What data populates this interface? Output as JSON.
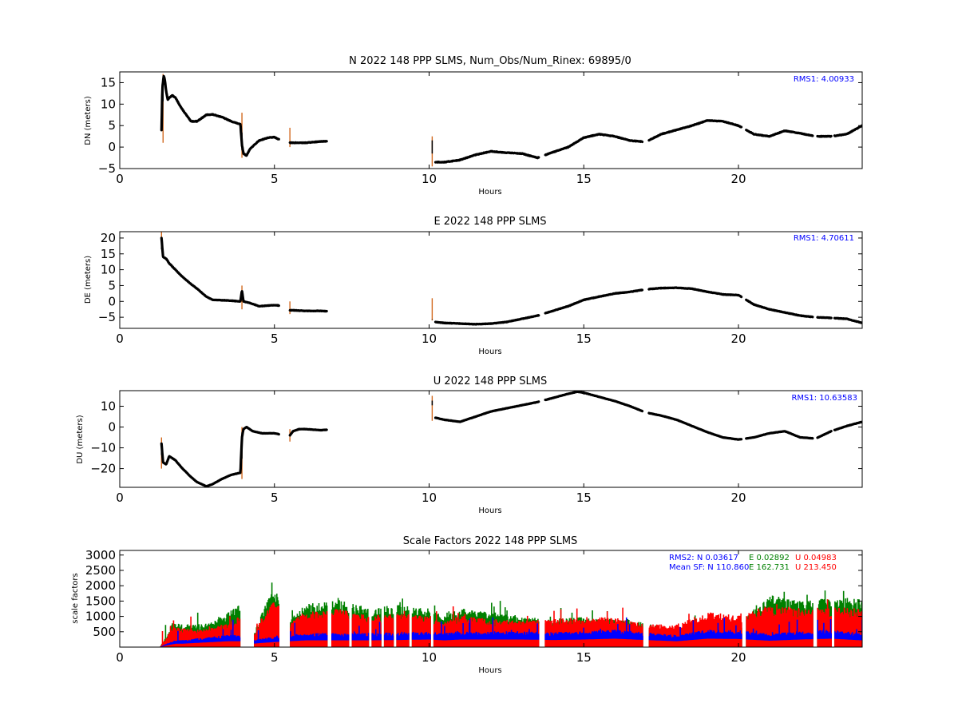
{
  "colors": {
    "trace": "#000000",
    "trace_error": "#d2691e",
    "n": "#0000ff",
    "e": "#008000",
    "u": "#ff0000",
    "rms_text": "#0000ff"
  },
  "chart_data": [
    {
      "type": "scatter",
      "title": "N 2022 148 PPP  SLMS, Num_Obs/Num_Rinex: 69895/0",
      "xlabel": "Hours",
      "ylabel": "DN (meters)",
      "xlim": [
        0,
        24
      ],
      "ylim": [
        -5,
        17.5
      ],
      "xticks": [
        0,
        5,
        10,
        15,
        20
      ],
      "xtick_labels": [
        "0",
        "5",
        "10",
        "15",
        "20"
      ],
      "yticks": [
        -5,
        0,
        5,
        10,
        15
      ],
      "ytick_labels": [
        "−5",
        "0",
        "5",
        "10",
        "15"
      ],
      "annotation": "RMS1:  4.00933",
      "gaps": [
        [
          5.15,
          5.5
        ],
        [
          6.7,
          10.2
        ],
        [
          13.55,
          13.75
        ],
        [
          16.9,
          17.1
        ],
        [
          20.1,
          20.25
        ],
        [
          22.4,
          22.55
        ],
        [
          23.0,
          23.1
        ]
      ],
      "error_spikes": [
        [
          1.4,
          1.0,
          17.0
        ],
        [
          3.95,
          -2.5,
          8.0
        ],
        [
          5.5,
          0.0,
          4.5
        ],
        [
          10.1,
          -4.5,
          2.5
        ]
      ],
      "series": [
        {
          "x": [
            1.35,
            1.38,
            1.42,
            1.45,
            1.5,
            1.55,
            1.6,
            1.7,
            1.8,
            2.0,
            2.3,
            2.5,
            2.8,
            3.0,
            3.3,
            3.6,
            3.9,
            3.95,
            4.0,
            4.1,
            4.2,
            4.35,
            4.5,
            4.8,
            5.0,
            5.15,
            5.5,
            5.55,
            5.7,
            6.0,
            6.5,
            7.0,
            7.5,
            8.0,
            8.5,
            9.0,
            9.5,
            10.0,
            10.1,
            10.15,
            10.5,
            11.0,
            11.5,
            12.0,
            12.5,
            13.0,
            13.5,
            14.0,
            14.5,
            15.0,
            15.5,
            16.0,
            16.5,
            17.0,
            17.5,
            18.0,
            18.5,
            19.0,
            19.5,
            20.0,
            20.5,
            21.0,
            21.5,
            22.0,
            22.5,
            23.0,
            23.5,
            24.0
          ],
          "y": [
            4.0,
            14.0,
            16.5,
            16.0,
            13.0,
            11.0,
            11.5,
            12.0,
            11.5,
            9.0,
            6.0,
            6.0,
            7.5,
            7.6,
            7.0,
            6.0,
            5.3,
            0.5,
            -1.5,
            -2.0,
            -0.5,
            0.5,
            1.5,
            2.2,
            2.3,
            1.8,
            1.0,
            1.0,
            1.0,
            1.0,
            1.3,
            1.5,
            1.7,
            1.5,
            1.8,
            2.6,
            2.6,
            1.7,
            1.5,
            -3.5,
            -3.5,
            -3.0,
            -1.8,
            -1.0,
            -1.3,
            -1.5,
            -2.5,
            -1.2,
            0.0,
            2.2,
            3.0,
            2.5,
            1.5,
            1.2,
            3.0,
            4.0,
            5.0,
            6.2,
            6.0,
            5.0,
            3.0,
            2.5,
            3.8,
            3.2,
            2.5,
            2.5,
            3.0,
            5.0
          ]
        }
      ]
    },
    {
      "type": "scatter",
      "title": "E 2022 148 PPP  SLMS",
      "xlabel": "Hours",
      "ylabel": "DE (meters)",
      "xlim": [
        0,
        24
      ],
      "ylim": [
        -8.5,
        22
      ],
      "xticks": [
        0,
        5,
        10,
        15,
        20
      ],
      "xtick_labels": [
        "0",
        "5",
        "10",
        "15",
        "20"
      ],
      "yticks": [
        -5,
        0,
        5,
        10,
        15,
        20
      ],
      "ytick_labels": [
        "−5",
        "0",
        "5",
        "10",
        "15",
        "20"
      ],
      "annotation": "RMS1:  4.70611",
      "gaps": [
        [
          5.15,
          5.5
        ],
        [
          6.7,
          10.2
        ],
        [
          13.55,
          13.75
        ],
        [
          16.9,
          17.1
        ],
        [
          20.1,
          20.25
        ],
        [
          22.4,
          22.55
        ],
        [
          23.0,
          23.1
        ]
      ],
      "error_spikes": [
        [
          1.35,
          18.0,
          22.0
        ],
        [
          3.95,
          -2.5,
          5.0
        ],
        [
          5.5,
          -4.0,
          0.0
        ],
        [
          10.1,
          -6.0,
          1.0
        ]
      ],
      "series": [
        {
          "x": [
            1.35,
            1.4,
            1.5,
            1.6,
            1.8,
            2.0,
            2.3,
            2.5,
            2.8,
            3.0,
            3.5,
            3.9,
            3.95,
            4.0,
            4.2,
            4.5,
            5.0,
            5.15,
            5.5,
            5.6,
            6.0,
            6.5,
            7.0,
            7.5,
            8.0,
            8.5,
            9.0,
            9.3,
            9.5,
            10.0,
            10.1,
            10.2,
            10.5,
            11.0,
            11.5,
            12.0,
            12.5,
            13.0,
            13.5,
            14.0,
            14.5,
            15.0,
            15.5,
            16.0,
            16.5,
            17.0,
            17.5,
            18.0,
            18.5,
            19.0,
            19.5,
            20.0,
            20.5,
            21.0,
            21.5,
            22.0,
            22.5,
            23.0,
            23.5,
            24.0
          ],
          "y": [
            20.0,
            14.0,
            13.5,
            12.0,
            10.0,
            8.0,
            5.5,
            4.0,
            1.5,
            0.5,
            0.3,
            0.0,
            3.5,
            0.0,
            -0.5,
            -1.5,
            -1.2,
            -1.3,
            -2.8,
            -2.8,
            -3.0,
            -3.0,
            -3.2,
            -4.0,
            -4.5,
            -5.5,
            -7.0,
            -7.8,
            -7.5,
            -6.0,
            -5.5,
            -6.5,
            -6.8,
            -7.0,
            -7.2,
            -7.0,
            -6.5,
            -5.5,
            -4.5,
            -3.0,
            -1.5,
            0.5,
            1.5,
            2.5,
            3.0,
            3.8,
            4.2,
            4.3,
            4.0,
            3.0,
            2.2,
            2.0,
            -1.0,
            -2.5,
            -3.5,
            -4.5,
            -5.0,
            -5.2,
            -5.5,
            -6.8
          ]
        }
      ]
    },
    {
      "type": "scatter",
      "title": "U 2022 148 PPP  SLMS",
      "xlabel": "Hours",
      "ylabel": "DU (meters)",
      "xlim": [
        0,
        24
      ],
      "ylim": [
        -29,
        17.5
      ],
      "xticks": [
        0,
        5,
        10,
        15,
        20
      ],
      "xtick_labels": [
        "0",
        "5",
        "10",
        "15",
        "20"
      ],
      "yticks": [
        -20,
        -10,
        0,
        10
      ],
      "ytick_labels": [
        "−20",
        "−10",
        "0",
        "10"
      ],
      "annotation": "RMS1: 10.63583",
      "gaps": [
        [
          5.15,
          5.5
        ],
        [
          6.7,
          10.2
        ],
        [
          13.55,
          13.75
        ],
        [
          16.9,
          17.1
        ],
        [
          20.1,
          20.25
        ],
        [
          22.4,
          22.55
        ],
        [
          23.0,
          23.1
        ]
      ],
      "error_spikes": [
        [
          1.35,
          -20.0,
          -5.0
        ],
        [
          3.95,
          -25.0,
          0.0
        ],
        [
          5.5,
          -7.0,
          -1.0
        ],
        [
          10.1,
          3.0,
          15.0
        ]
      ],
      "series": [
        {
          "x": [
            1.35,
            1.4,
            1.5,
            1.6,
            1.8,
            2.0,
            2.3,
            2.5,
            2.8,
            3.0,
            3.3,
            3.6,
            3.9,
            3.95,
            4.0,
            4.1,
            4.3,
            4.6,
            5.0,
            5.15,
            5.5,
            5.6,
            5.8,
            6.0,
            6.5,
            7.0,
            7.5,
            8.0,
            8.5,
            9.0,
            9.5,
            10.0,
            10.1,
            10.2,
            10.5,
            11.0,
            11.5,
            12.0,
            12.5,
            13.0,
            13.5,
            14.0,
            14.5,
            14.8,
            15.0,
            15.5,
            16.0,
            16.5,
            17.0,
            17.5,
            18.0,
            18.5,
            19.0,
            19.5,
            20.0,
            20.5,
            21.0,
            21.5,
            22.0,
            22.5,
            23.0,
            23.5,
            24.0
          ],
          "y": [
            -8.0,
            -17.0,
            -18.0,
            -14.0,
            -16.0,
            -19.5,
            -24.0,
            -26.5,
            -28.5,
            -27.5,
            -25.0,
            -23.0,
            -22.0,
            -5.0,
            -1.0,
            0.0,
            -2.0,
            -3.0,
            -3.0,
            -3.5,
            -4.0,
            -2.0,
            -1.0,
            -1.0,
            -1.5,
            -1.0,
            0.5,
            1.5,
            3.0,
            6.0,
            9.0,
            12.0,
            13.0,
            4.5,
            3.5,
            2.5,
            5.0,
            7.5,
            9.0,
            10.5,
            12.0,
            14.0,
            16.0,
            17.0,
            16.5,
            14.5,
            12.5,
            10.0,
            7.0,
            5.5,
            3.5,
            0.5,
            -2.5,
            -5.0,
            -6.0,
            -5.0,
            -3.0,
            -2.0,
            -5.0,
            -5.5,
            -2.0,
            0.5,
            2.5
          ]
        }
      ]
    },
    {
      "type": "scatter",
      "title": "Scale Factors 2022 148 PPP  SLMS",
      "xlabel": "Hours",
      "ylabel": "scale factors",
      "xlim": [
        0,
        24
      ],
      "ylim": [
        0,
        3150
      ],
      "xticks": [
        0,
        5,
        10,
        15,
        20
      ],
      "xtick_labels": [
        "0",
        "5",
        "10",
        "15",
        "20"
      ],
      "yticks": [
        500,
        1000,
        1500,
        2000,
        2500,
        3000
      ],
      "ytick_labels": [
        "500",
        "1000",
        "1500",
        "2000",
        "2500",
        "3000"
      ],
      "annotations": {
        "rms2_label": "RMS2: N  0.03617",
        "rms2_e": "E  0.02892",
        "rms2_u": "U  0.04983",
        "mean_label": "Mean SF: N 110.860",
        "mean_e": "E 162.731",
        "mean_u": "U 213.450"
      },
      "gaps": [
        [
          3.9,
          4.35
        ],
        [
          5.15,
          5.5
        ],
        [
          6.7,
          6.85
        ],
        [
          7.4,
          7.5
        ],
        [
          8.05,
          8.15
        ],
        [
          8.45,
          8.55
        ],
        [
          8.85,
          8.95
        ],
        [
          9.35,
          9.45
        ],
        [
          10.05,
          10.15
        ],
        [
          13.55,
          13.75
        ],
        [
          16.9,
          17.1
        ],
        [
          20.1,
          20.25
        ],
        [
          22.4,
          22.55
        ],
        [
          23.0,
          23.1
        ]
      ],
      "series": [
        {
          "name": "N",
          "x": [
            1.3,
            1.5,
            1.8,
            2.0,
            2.5,
            3.0,
            3.5,
            3.9,
            4.3,
            4.6,
            5.0,
            5.5,
            6.0,
            7.0,
            8.0,
            9.0,
            10.0,
            10.5,
            11.0,
            12.0,
            13.0,
            14.0,
            15.0,
            16.0,
            17.0,
            18.0,
            19.0,
            20.0,
            21.0,
            22.0,
            23.0,
            24.0
          ],
          "y": [
            0,
            100,
            200,
            200,
            250,
            300,
            350,
            350,
            200,
            250,
            300,
            350,
            400,
            400,
            400,
            420,
            450,
            400,
            450,
            450,
            450,
            420,
            450,
            500,
            420,
            350,
            500,
            480,
            380,
            450,
            500,
            400
          ]
        },
        {
          "name": "E",
          "x": [
            1.3,
            1.5,
            1.7,
            2.0,
            2.5,
            3.0,
            3.5,
            3.9,
            4.3,
            4.6,
            5.0,
            5.5,
            6.0,
            7.0,
            8.0,
            9.0,
            10.0,
            10.5,
            11.0,
            12.0,
            13.0,
            14.0,
            15.0,
            16.0,
            17.0,
            18.0,
            19.0,
            20.0,
            21.0,
            22.0,
            23.0,
            24.0
          ],
          "y": [
            0,
            300,
            700,
            650,
            650,
            700,
            1000,
            1200,
            300,
            1000,
            1700,
            800,
            1200,
            1400,
            1100,
            1200,
            1100,
            900,
            1100,
            1000,
            850,
            800,
            850,
            800,
            700,
            450,
            700,
            650,
            1500,
            1300,
            1400,
            1400
          ]
        },
        {
          "name": "U",
          "x": [
            1.3,
            1.5,
            1.7,
            2.0,
            2.5,
            3.0,
            3.5,
            3.9,
            4.3,
            4.6,
            5.0,
            5.5,
            6.0,
            7.0,
            8.0,
            9.0,
            10.0,
            10.5,
            11.0,
            12.0,
            13.0,
            14.0,
            15.0,
            16.0,
            17.0,
            18.0,
            19.0,
            20.0,
            21.0,
            22.0,
            23.0,
            24.0
          ],
          "y": [
            0,
            250,
            600,
            550,
            500,
            550,
            700,
            900,
            250,
            850,
            1400,
            700,
            1000,
            1100,
            900,
            950,
            900,
            700,
            900,
            800,
            750,
            800,
            850,
            850,
            650,
            650,
            1000,
            900,
            1200,
            1100,
            1150,
            1100
          ]
        }
      ]
    }
  ]
}
